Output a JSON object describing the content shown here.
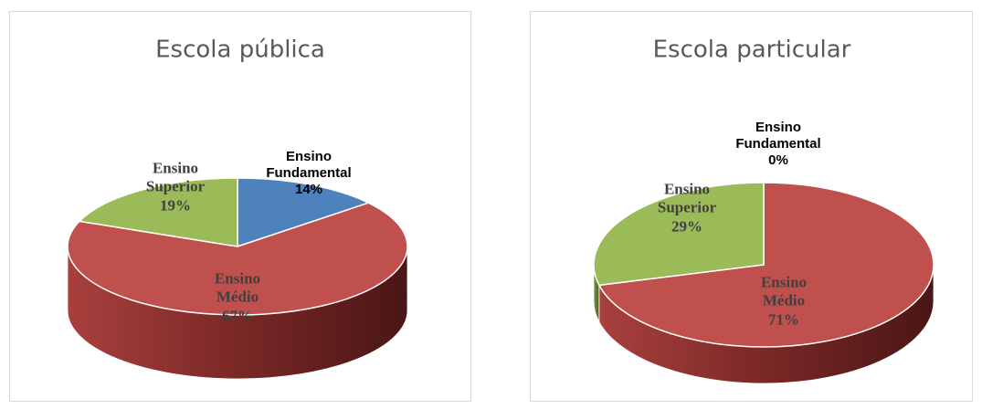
{
  "chart_data": [
    {
      "type": "pie3d",
      "title": "Escola pública",
      "categories": [
        "Ensino Fundamental",
        "Ensino Médio",
        "Ensino Superior"
      ],
      "values": [
        14,
        67,
        19
      ],
      "value_labels": [
        "14%",
        "67%",
        "19%"
      ],
      "colors": [
        "#4f81bd",
        "#c0504d",
        "#9bbb59"
      ]
    },
    {
      "type": "pie3d",
      "title": "Escola particular",
      "categories": [
        "Ensino Fundamental",
        "Ensino Médio",
        "Ensino Superior"
      ],
      "values": [
        0,
        71,
        29
      ],
      "value_labels": [
        "0%",
        "71%",
        "29%"
      ],
      "colors": [
        "#4f81bd",
        "#c0504d",
        "#9bbb59"
      ]
    }
  ]
}
